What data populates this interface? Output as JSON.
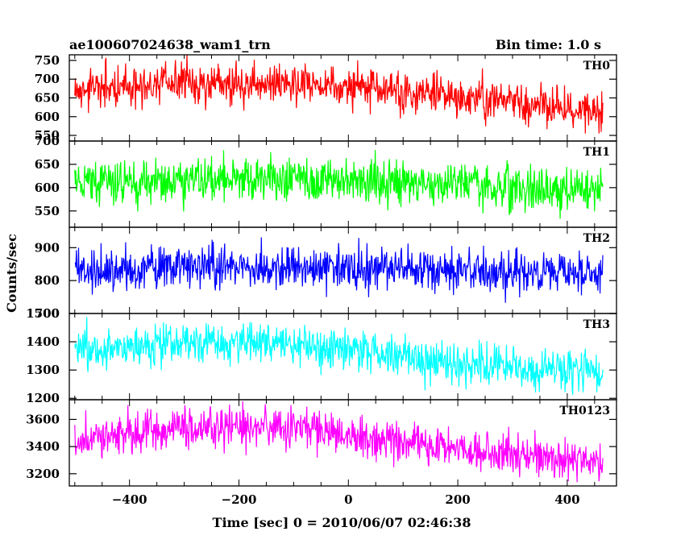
{
  "chart_data": {
    "type": "line",
    "title_left": "ae100607024638_wam1_trn",
    "title_right": "Bin time: 1.0 s",
    "xlabel": "Time [sec] 0 = 2010/06/07 02:46:38",
    "ylabel": "Counts/sec",
    "xlim": [
      -510,
      490
    ],
    "x_range": [
      -500,
      465
    ],
    "x_step": 1,
    "xticks": [
      -400,
      -200,
      0,
      200,
      400
    ],
    "xtick_labels": [
      "−400",
      "−200",
      "0",
      "200",
      "400"
    ],
    "panels": [
      {
        "name": "TH0",
        "color": "#ff0000",
        "ylim": [
          535,
          765
        ],
        "yticks": [
          550,
          600,
          650,
          700,
          750
        ],
        "trend": [
          [
            -500,
            668
          ],
          [
            -350,
            690
          ],
          [
            -100,
            690
          ],
          [
            100,
            665
          ],
          [
            300,
            640
          ],
          [
            465,
            612
          ]
        ],
        "noise": 28
      },
      {
        "name": "TH1",
        "color": "#00ff00",
        "ylim": [
          515,
          700
        ],
        "yticks": [
          550,
          600,
          650,
          700
        ],
        "trend": [
          [
            -500,
            610
          ],
          [
            -200,
            620
          ],
          [
            100,
            612
          ],
          [
            300,
            600
          ],
          [
            465,
            598
          ]
        ],
        "noise": 24
      },
      {
        "name": "TH2",
        "color": "#0000ff",
        "ylim": [
          700,
          962
        ],
        "yticks": [
          700,
          800,
          900
        ],
        "trend": [
          [
            -500,
            828
          ],
          [
            -200,
            842
          ],
          [
            100,
            836
          ],
          [
            300,
            826
          ],
          [
            465,
            820
          ]
        ],
        "noise": 33
      },
      {
        "name": "TH3",
        "color": "#00ffff",
        "ylim": [
          1195,
          1500
        ],
        "yticks": [
          1200,
          1300,
          1400,
          1500
        ],
        "trend": [
          [
            -500,
            1368
          ],
          [
            -300,
            1395
          ],
          [
            -100,
            1390
          ],
          [
            100,
            1345
          ],
          [
            300,
            1305
          ],
          [
            465,
            1290
          ]
        ],
        "noise": 38
      },
      {
        "name": "TH0123",
        "color": "#ff00ff",
        "ylim": [
          3110,
          3745
        ],
        "yticks": [
          3200,
          3400,
          3600
        ],
        "trend": [
          [
            -500,
            3450
          ],
          [
            -300,
            3545
          ],
          [
            -100,
            3540
          ],
          [
            100,
            3430
          ],
          [
            300,
            3345
          ],
          [
            465,
            3270
          ]
        ],
        "noise": 75
      }
    ]
  }
}
